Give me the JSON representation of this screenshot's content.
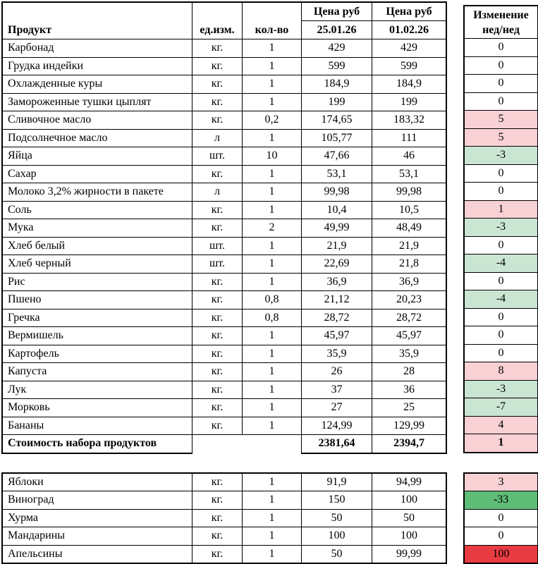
{
  "header": {
    "product": "Продукт",
    "unit": "ед.изм.",
    "qty": "кол-во",
    "price_label_1": "Цена руб",
    "price_label_2": "Цена руб",
    "date1": "25.01.26",
    "date2": "01.02.26",
    "change_line1": "Изменение",
    "change_line2": "нед/нед"
  },
  "colors": {
    "pink": "#F8D1D5",
    "green_light": "#CBE5D3",
    "green": "#5EBD77",
    "red": "#E93C42",
    "border": "#000000"
  },
  "main_table": {
    "rows": [
      {
        "name": "Карбонад",
        "unit": "кг.",
        "qty": "1",
        "price1": "429",
        "price2": "429",
        "change": "0",
        "hl": "none"
      },
      {
        "name": "Грудка индейки",
        "unit": "кг.",
        "qty": "1",
        "price1": "599",
        "price2": "599",
        "change": "0",
        "hl": "none"
      },
      {
        "name": "Охлажденные куры",
        "unit": "кг.",
        "qty": "1",
        "price1": "184,9",
        "price2": "184,9",
        "change": "0",
        "hl": "none"
      },
      {
        "name": "Замороженные тушки цыплят",
        "unit": "кг.",
        "qty": "1",
        "price1": "199",
        "price2": "199",
        "change": "0",
        "hl": "none"
      },
      {
        "name": "Сливочное масло",
        "unit": "кг.",
        "qty": "0,2",
        "price1": "174,65",
        "price2": "183,32",
        "change": "5",
        "hl": "pink"
      },
      {
        "name": "Подсолнечное масло",
        "unit": "л",
        "qty": "1",
        "price1": "105,77",
        "price2": "111",
        "change": "5",
        "hl": "pink"
      },
      {
        "name": "Яйца",
        "unit": "шт.",
        "qty": "10",
        "price1": "47,66",
        "price2": "46",
        "change": "-3",
        "hl": "green-light"
      },
      {
        "name": "Сахар",
        "unit": "кг.",
        "qty": "1",
        "price1": "53,1",
        "price2": "53,1",
        "change": "0",
        "hl": "none"
      },
      {
        "name": "Молоко 3,2% жирности в пакете",
        "unit": "л",
        "qty": "1",
        "price1": "99,98",
        "price2": "99,98",
        "change": "0",
        "hl": "none"
      },
      {
        "name": "Соль",
        "unit": "кг.",
        "qty": "1",
        "price1": "10,4",
        "price2": "10,5",
        "change": "1",
        "hl": "pink"
      },
      {
        "name": "Мука",
        "unit": "кг.",
        "qty": "2",
        "price1": "49,99",
        "price2": "48,49",
        "change": "-3",
        "hl": "green-light"
      },
      {
        "name": "Хлеб белый",
        "unit": "шт.",
        "qty": "1",
        "price1": "21,9",
        "price2": "21,9",
        "change": "0",
        "hl": "none"
      },
      {
        "name": "Хлеб черный",
        "unit": "шт.",
        "qty": "1",
        "price1": "22,69",
        "price2": "21,8",
        "change": "-4",
        "hl": "green-light"
      },
      {
        "name": "Рис",
        "unit": "кг.",
        "qty": "1",
        "price1": "36,9",
        "price2": "36,9",
        "change": "0",
        "hl": "none"
      },
      {
        "name": "Пшено",
        "unit": "кг.",
        "qty": "0,8",
        "price1": "21,12",
        "price2": "20,23",
        "change": "-4",
        "hl": "green-light"
      },
      {
        "name": "Гречка",
        "unit": "кг.",
        "qty": "0,8",
        "price1": "28,72",
        "price2": "28,72",
        "change": "0",
        "hl": "none"
      },
      {
        "name": "Вермишель",
        "unit": "кг.",
        "qty": "1",
        "price1": "45,97",
        "price2": "45,97",
        "change": "0",
        "hl": "none"
      },
      {
        "name": "Картофель",
        "unit": "кг.",
        "qty": "1",
        "price1": "35,9",
        "price2": "35,9",
        "change": "0",
        "hl": "none"
      },
      {
        "name": "Капуста",
        "unit": "кг.",
        "qty": "1",
        "price1": "26",
        "price2": "28",
        "change": "8",
        "hl": "pink"
      },
      {
        "name": "Лук",
        "unit": "кг.",
        "qty": "1",
        "price1": "37",
        "price2": "36",
        "change": "-3",
        "hl": "green-light"
      },
      {
        "name": "Морковь",
        "unit": "кг.",
        "qty": "1",
        "price1": "27",
        "price2": "25",
        "change": "-7",
        "hl": "green-light"
      },
      {
        "name": "Бананы",
        "unit": "кг.",
        "qty": "1",
        "price1": "124,99",
        "price2": "129,99",
        "change": "4",
        "hl": "pink"
      }
    ],
    "total": {
      "label": "Стоимость набора продуктов",
      "price1": "2381,64",
      "price2": "2394,7",
      "change": "1",
      "hl": "pink"
    }
  },
  "fruit_table": {
    "rows": [
      {
        "name": "Яблоки",
        "unit": "кг.",
        "qty": "1",
        "price1": "91,9",
        "price2": "94,99",
        "change": "3",
        "hl": "pink"
      },
      {
        "name": "Виноград",
        "unit": "кг.",
        "qty": "1",
        "price1": "150",
        "price2": "100",
        "change": "-33",
        "hl": "green"
      },
      {
        "name": "Хурма",
        "unit": "кг.",
        "qty": "1",
        "price1": "50",
        "price2": "50",
        "change": "0",
        "hl": "none"
      },
      {
        "name": "Мандарины",
        "unit": "кг.",
        "qty": "1",
        "price1": "100",
        "price2": "100",
        "change": "0",
        "hl": "none"
      },
      {
        "name": "Апельсины",
        "unit": "кг.",
        "qty": "1",
        "price1": "50",
        "price2": "99,99",
        "change": "100",
        "hl": "red"
      }
    ]
  }
}
